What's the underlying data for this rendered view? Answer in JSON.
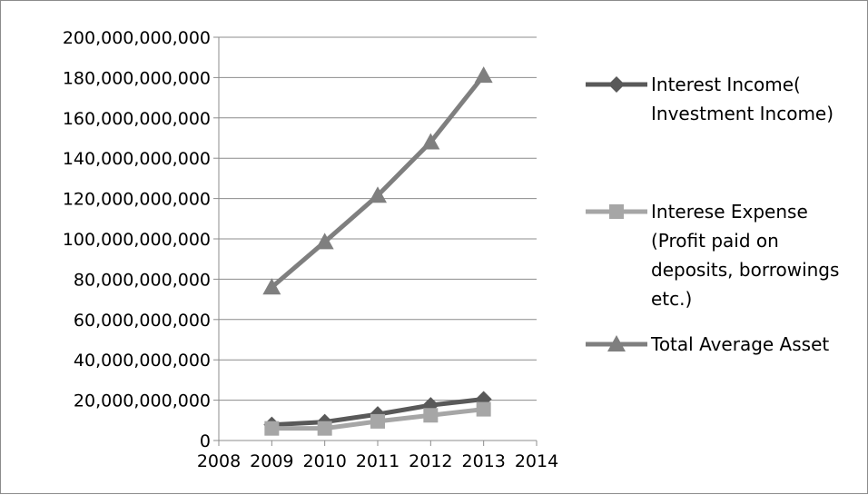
{
  "chart_data": {
    "type": "line",
    "title": "",
    "xlabel": "",
    "ylabel": "",
    "xlim": [
      2008,
      2014
    ],
    "ylim": [
      0,
      200000000000
    ],
    "x_ticks": [
      "2008",
      "2009",
      "2010",
      "2011",
      "2012",
      "2013",
      "2014"
    ],
    "y_ticks": [
      "0",
      "20,000,000,000",
      "40,000,000,000",
      "60,000,000,000",
      "80,000,000,000",
      "100,000,000,000",
      "120,000,000,000",
      "140,000,000,000",
      "160,000,000,000",
      "180,000,000,000",
      "200,000,000,000"
    ],
    "grid": "horizontal",
    "legend_position": "right",
    "series": [
      {
        "name_lines": [
          "Interest Income(",
          "Investment Income)"
        ],
        "marker": "diamond",
        "color": "#595959",
        "x": [
          2009,
          2010,
          2011,
          2012,
          2013
        ],
        "values": [
          7800000000,
          9200000000,
          13000000000,
          17500000000,
          20500000000
        ]
      },
      {
        "name_lines": [
          "Interese Expense",
          "(Profit paid on",
          "deposits, borrowings",
          "etc.)"
        ],
        "marker": "square",
        "color": "#a6a6a6",
        "x": [
          2009,
          2010,
          2011,
          2012,
          2013
        ],
        "values": [
          6000000000,
          6000000000,
          9500000000,
          12500000000,
          15500000000
        ]
      },
      {
        "name_lines": [
          "Total Average Asset"
        ],
        "marker": "triangle",
        "color": "#7f7f7f",
        "x": [
          2009,
          2010,
          2011,
          2012,
          2013
        ],
        "values": [
          76000000000,
          98500000000,
          121500000000,
          148000000000,
          181000000000
        ]
      }
    ]
  }
}
